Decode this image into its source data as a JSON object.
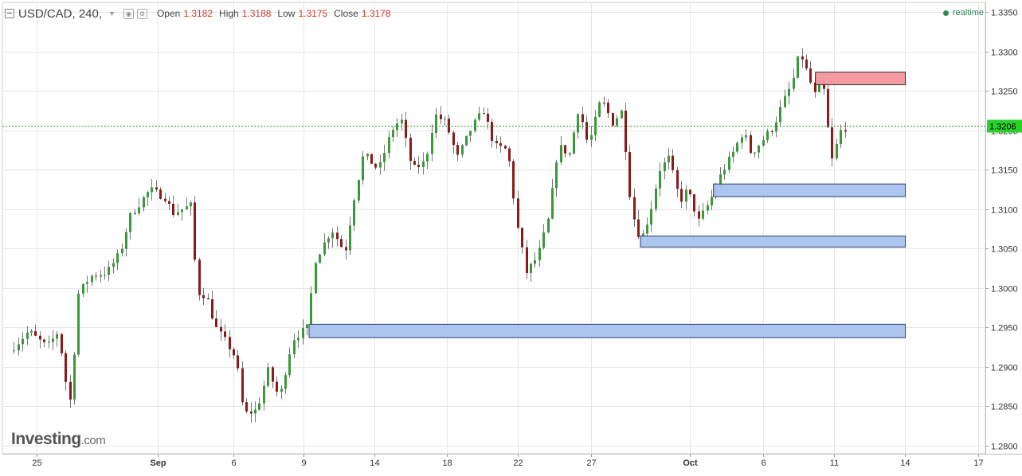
{
  "header": {
    "symbol": "USD/CAD, 240,",
    "open_label": "Open",
    "open_value": "1.3182",
    "high_label": "High",
    "high_value": "1.3188",
    "low_label": "Low",
    "low_value": "1.3175",
    "close_label": "Close",
    "close_value": "1.3178"
  },
  "realtime_label": "realtime",
  "logo": {
    "main": "Investing",
    "suffix": ".com"
  },
  "colors": {
    "up": "#3a9a3a",
    "down": "#8b1a1a",
    "support": "#a9c4f0",
    "resistance": "#f4959b",
    "price_line": "#2e9a2e",
    "price_tag": "#2ad12a"
  },
  "chart_data": {
    "type": "candlestick",
    "title": "USD/CAD, 240,",
    "ylim": [
      1.2785,
      1.3365
    ],
    "y_ticks": [
      1.28,
      1.285,
      1.29,
      1.295,
      1.3,
      1.305,
      1.31,
      1.315,
      1.32,
      1.325,
      1.33,
      1.335
    ],
    "y_tick_labels": [
      "1.2800",
      "1.2850",
      "1.2900",
      "1.2950",
      "1.3000",
      "1.3050",
      "1.3100",
      "1.3150",
      "1.3200",
      "1.3250",
      "1.3300",
      "1.3350"
    ],
    "x_range": [
      0,
      49.2
    ],
    "x_ticks": [
      {
        "x": 1.45,
        "label": "25",
        "bold": false
      },
      {
        "x": 7.9,
        "label": "Sep",
        "bold": true
      },
      {
        "x": 11.95,
        "label": "6",
        "bold": false
      },
      {
        "x": 15.7,
        "label": "9",
        "bold": false
      },
      {
        "x": 19.5,
        "label": "14",
        "bold": false
      },
      {
        "x": 23.35,
        "label": "18",
        "bold": false
      },
      {
        "x": 27.15,
        "label": "22",
        "bold": false
      },
      {
        "x": 31.05,
        "label": "27",
        "bold": false
      },
      {
        "x": 36.35,
        "label": "Oct",
        "bold": true
      },
      {
        "x": 40.25,
        "label": "6",
        "bold": false
      },
      {
        "x": 44.05,
        "label": "11",
        "bold": false
      },
      {
        "x": 47.85,
        "label": "14",
        "bold": false
      },
      {
        "x": 51.75,
        "label": "17",
        "bold": false
      }
    ],
    "current_price": 1.3206,
    "current_price_label": "1.3206",
    "zones": [
      {
        "type": "resistance",
        "x0": 43.05,
        "x1": 47.85,
        "y0": 1.3258,
        "y1": 1.3274
      },
      {
        "type": "support",
        "x0": 37.6,
        "x1": 47.85,
        "y0": 1.3116,
        "y1": 1.3132
      },
      {
        "type": "support",
        "x0": 33.7,
        "x1": 47.85,
        "y0": 1.3052,
        "y1": 1.3066
      },
      {
        "type": "support",
        "x0": 16.0,
        "x1": 47.85,
        "y0": 1.2937,
        "y1": 1.2954
      }
    ],
    "anchors": [
      [
        0.0,
        1.292
      ],
      [
        1.0,
        1.2945
      ],
      [
        2.0,
        1.2925
      ],
      [
        2.6,
        1.2945
      ],
      [
        3.0,
        1.288
      ],
      [
        3.3,
        1.285
      ],
      [
        3.6,
        1.299
      ],
      [
        4.3,
        1.3015
      ],
      [
        5.2,
        1.302
      ],
      [
        5.9,
        1.3045
      ],
      [
        6.4,
        1.309
      ],
      [
        7.0,
        1.311
      ],
      [
        7.5,
        1.3125
      ],
      [
        8.3,
        1.3115
      ],
      [
        8.7,
        1.3095
      ],
      [
        9.7,
        1.3105
      ],
      [
        10.0,
        1.2995
      ],
      [
        10.5,
        1.299
      ],
      [
        11.0,
        1.295
      ],
      [
        11.6,
        1.293
      ],
      [
        12.1,
        1.291
      ],
      [
        12.5,
        1.284
      ],
      [
        13.2,
        1.2845
      ],
      [
        13.8,
        1.2895
      ],
      [
        14.4,
        1.286
      ],
      [
        15.1,
        1.2935
      ],
      [
        15.9,
        1.295
      ],
      [
        16.3,
        1.3035
      ],
      [
        17.2,
        1.3075
      ],
      [
        17.9,
        1.3045
      ],
      [
        18.4,
        1.3115
      ],
      [
        18.9,
        1.317
      ],
      [
        19.7,
        1.315
      ],
      [
        20.4,
        1.32
      ],
      [
        20.9,
        1.3215
      ],
      [
        21.5,
        1.315
      ],
      [
        22.2,
        1.316
      ],
      [
        22.7,
        1.322
      ],
      [
        23.3,
        1.321
      ],
      [
        23.9,
        1.3165
      ],
      [
        24.7,
        1.3205
      ],
      [
        25.3,
        1.3225
      ],
      [
        25.9,
        1.318
      ],
      [
        26.6,
        1.3175
      ],
      [
        27.1,
        1.308
      ],
      [
        27.6,
        1.302
      ],
      [
        28.2,
        1.304
      ],
      [
        28.8,
        1.309
      ],
      [
        29.3,
        1.318
      ],
      [
        29.9,
        1.317
      ],
      [
        30.4,
        1.323
      ],
      [
        30.9,
        1.318
      ],
      [
        31.6,
        1.324
      ],
      [
        32.2,
        1.321
      ],
      [
        32.7,
        1.3225
      ],
      [
        33.2,
        1.31
      ],
      [
        33.7,
        1.306
      ],
      [
        34.2,
        1.3095
      ],
      [
        34.7,
        1.315
      ],
      [
        35.2,
        1.3165
      ],
      [
        35.8,
        1.311
      ],
      [
        36.2,
        1.3125
      ],
      [
        36.8,
        1.3085
      ],
      [
        37.4,
        1.311
      ],
      [
        38.0,
        1.3145
      ],
      [
        38.6,
        1.317
      ],
      [
        39.2,
        1.32
      ],
      [
        39.6,
        1.317
      ],
      [
        40.3,
        1.319
      ],
      [
        40.8,
        1.3205
      ],
      [
        41.3,
        1.3235
      ],
      [
        41.8,
        1.326
      ],
      [
        42.2,
        1.33
      ],
      [
        42.5,
        1.328
      ],
      [
        43.0,
        1.3245
      ],
      [
        43.4,
        1.3265
      ],
      [
        43.9,
        1.316
      ],
      [
        44.4,
        1.32
      ],
      [
        44.8,
        1.3206
      ]
    ],
    "candle_spacing": 0.23,
    "seed": 7
  }
}
